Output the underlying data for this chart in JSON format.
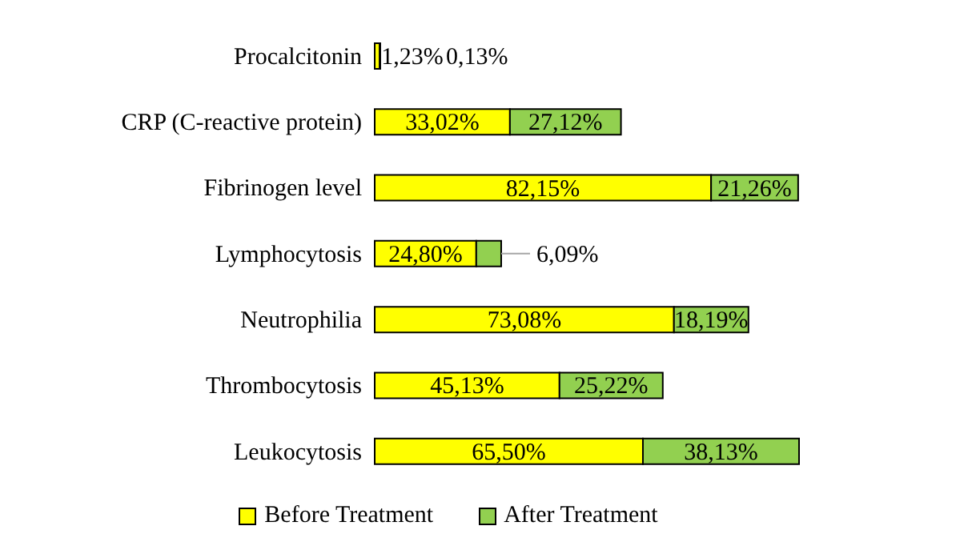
{
  "chart_data": {
    "type": "bar",
    "orientation": "horizontal",
    "stacked": true,
    "categories": [
      "Procalcitonin",
      "CRP (C-reactive protein)",
      "Fibrinogen level",
      "Lymphocytosis",
      "Neutrophilia",
      "Thrombocytosis",
      "Leukocytosis"
    ],
    "series": [
      {
        "name": "Before Treatment",
        "color": "#ffff00",
        "values": [
          1.23,
          33.02,
          82.15,
          24.8,
          73.08,
          45.13,
          65.5
        ],
        "value_labels": [
          "1,23%",
          "33,02%",
          "82,15%",
          "24,80%",
          "73,08%",
          "45,13%",
          "65,50%"
        ]
      },
      {
        "name": "After Treatment",
        "color": "#92d050",
        "values": [
          0.13,
          27.12,
          21.26,
          6.09,
          18.19,
          25.22,
          38.13
        ],
        "value_labels": [
          "0,13%",
          "27,12%",
          "21,26%",
          "6,09%",
          "18,19%",
          "25,22%",
          "38,13%"
        ]
      }
    ],
    "tick_labels": "y",
    "legend": "bottom"
  }
}
